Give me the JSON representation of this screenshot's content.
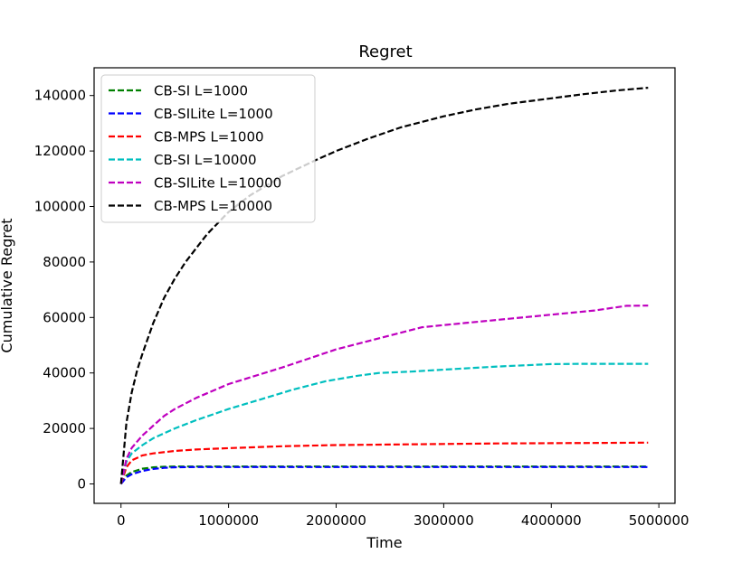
{
  "chart_data": {
    "type": "line",
    "title": "Regret",
    "xlabel": "Time",
    "ylabel": "Cumulative Regret",
    "xlim": [
      -250000,
      5150000
    ],
    "ylim": [
      -7000,
      150000
    ],
    "xticks": [
      0,
      1000000,
      2000000,
      3000000,
      4000000,
      5000000
    ],
    "xtick_labels": [
      "0",
      "1000000",
      "2000000",
      "3000000",
      "4000000",
      "5000000"
    ],
    "yticks": [
      0,
      20000,
      40000,
      60000,
      80000,
      100000,
      120000,
      140000
    ],
    "ytick_labels": [
      "0",
      "20000",
      "40000",
      "60000",
      "80000",
      "100000",
      "120000",
      "140000"
    ],
    "grid": false,
    "legend_position": "upper-left",
    "line_style": "dashed",
    "series": [
      {
        "name": "CB-SI L=1000",
        "color": "#008000",
        "x": [
          0,
          50000,
          100000,
          200000,
          300000,
          400000,
          500000,
          700000,
          1000000,
          2000000,
          3000000,
          4000000,
          4900000
        ],
        "y": [
          0,
          3000,
          4300,
          5500,
          6000,
          6200,
          6300,
          6300,
          6300,
          6300,
          6300,
          6300,
          6300
        ]
      },
      {
        "name": "CB-SILite L=1000",
        "color": "#0000ff",
        "x": [
          0,
          50000,
          100000,
          200000,
          300000,
          400000,
          500000,
          700000,
          1000000,
          2000000,
          3000000,
          4000000,
          4900000
        ],
        "y": [
          0,
          2400,
          3500,
          4700,
          5400,
          5800,
          6000,
          6100,
          6100,
          6100,
          6100,
          6100,
          6100
        ]
      },
      {
        "name": "CB-MPS L=1000",
        "color": "#ff0000",
        "x": [
          0,
          50000,
          100000,
          200000,
          300000,
          500000,
          700000,
          1000000,
          1500000,
          2000000,
          2500000,
          3000000,
          3500000,
          4000000,
          4500000,
          4900000
        ],
        "y": [
          0,
          6000,
          8500,
          10300,
          11000,
          11900,
          12400,
          12900,
          13600,
          14000,
          14200,
          14400,
          14600,
          14700,
          14800,
          14900
        ]
      },
      {
        "name": "CB-SI L=10000",
        "color": "#00bfbf",
        "x": [
          0,
          50000,
          100000,
          200000,
          300000,
          500000,
          700000,
          1000000,
          1300000,
          1600000,
          1900000,
          2200000,
          2400000,
          2700000,
          3000000,
          3500000,
          4000000,
          4300000,
          4900000
        ],
        "y": [
          0,
          8000,
          11000,
          14000,
          16500,
          20000,
          23000,
          27000,
          30500,
          34000,
          37000,
          39000,
          40000,
          40500,
          41200,
          42300,
          43200,
          43300,
          43300
        ]
      },
      {
        "name": "CB-SILite L=10000",
        "color": "#bf00bf",
        "x": [
          0,
          50000,
          100000,
          200000,
          300000,
          400000,
          500000,
          700000,
          1000000,
          1500000,
          2000000,
          2500000,
          2800000,
          3200000,
          3600000,
          4000000,
          4400000,
          4700000,
          4900000
        ],
        "y": [
          0,
          9000,
          13000,
          17500,
          21000,
          24500,
          27000,
          31000,
          36000,
          42000,
          48500,
          53500,
          56500,
          58000,
          59500,
          61000,
          62500,
          64200,
          64300
        ]
      },
      {
        "name": "CB-MPS L=10000",
        "color": "#000000",
        "x": [
          0,
          50000,
          100000,
          150000,
          200000,
          300000,
          400000,
          500000,
          600000,
          800000,
          1000000,
          1200000,
          1500000,
          1800000,
          2000000,
          2300000,
          2600000,
          3000000,
          3300000,
          3600000,
          4000000,
          4300000,
          4600000,
          4900000
        ],
        "y": [
          0,
          22000,
          33000,
          41000,
          47000,
          58000,
          67000,
          74000,
          80000,
          90000,
          98000,
          104000,
          111000,
          116500,
          120000,
          124500,
          128500,
          132500,
          135000,
          137000,
          139000,
          140500,
          141800,
          142800
        ]
      }
    ]
  }
}
